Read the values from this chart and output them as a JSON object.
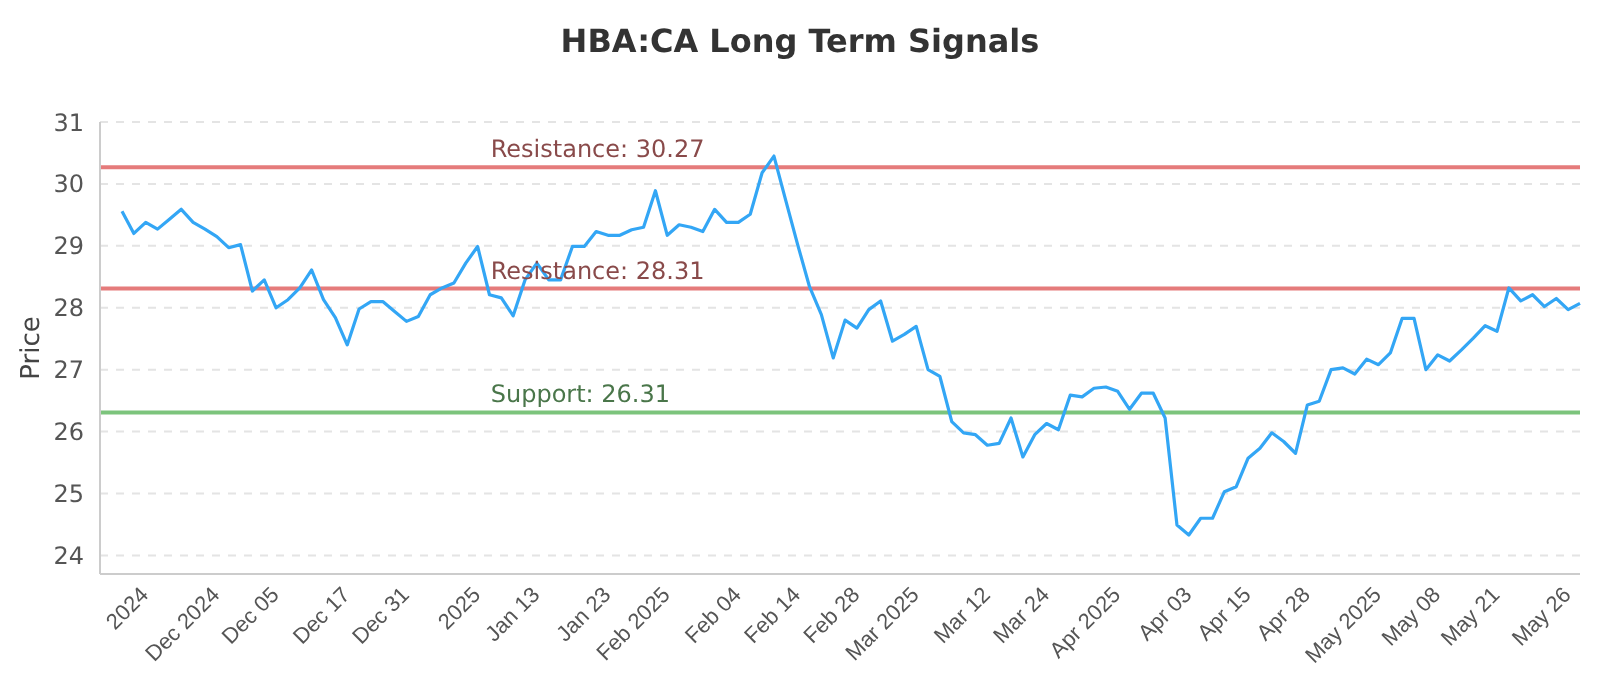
{
  "chart_data": {
    "type": "line",
    "title": "HBA:CA Long Term Signals",
    "ylabel": "Price",
    "categories": [
      null,
      null,
      "2024",
      null,
      null,
      null,
      null,
      null,
      "Dec 2024",
      null,
      null,
      null,
      null,
      "Dec 05",
      null,
      null,
      null,
      null,
      null,
      "Dec 17",
      null,
      null,
      null,
      null,
      "Dec 31",
      null,
      null,
      null,
      null,
      null,
      "2025",
      null,
      null,
      null,
      null,
      "Jan 13",
      null,
      null,
      null,
      null,
      null,
      "Jan 23",
      null,
      null,
      null,
      null,
      "Feb 2025",
      null,
      null,
      null,
      null,
      null,
      "Feb 04",
      null,
      null,
      null,
      null,
      "Feb 14",
      null,
      null,
      null,
      null,
      "Feb 28",
      null,
      null,
      null,
      null,
      "Mar 2025",
      null,
      null,
      null,
      null,
      null,
      "Mar 12",
      null,
      null,
      null,
      null,
      "Mar 24",
      null,
      null,
      null,
      null,
      null,
      "Apr 2025",
      null,
      null,
      null,
      null,
      null,
      "Apr 03",
      null,
      null,
      null,
      null,
      "Apr 15",
      null,
      null,
      null,
      null,
      "Apr 28",
      null,
      null,
      null,
      null,
      null,
      "May 2025",
      null,
      null,
      null,
      null,
      "May 08",
      null,
      null,
      null,
      null,
      "May 21",
      null,
      null,
      null,
      null,
      null,
      "May 26",
      null
    ],
    "series": [
      {
        "color": "#33a6f5",
        "values": [
          29.56,
          29.2,
          29.38,
          29.27,
          29.43,
          29.59,
          29.38,
          29.27,
          29.15,
          28.97,
          29.02,
          28.27,
          28.45,
          28.0,
          28.13,
          28.32,
          28.61,
          28.13,
          27.84,
          27.4,
          27.98,
          28.1,
          28.1,
          27.94,
          27.78,
          27.86,
          28.21,
          28.32,
          28.4,
          28.72,
          28.99,
          28.21,
          28.16,
          27.87,
          28.45,
          28.72,
          28.45,
          28.45,
          28.99,
          28.99,
          29.23,
          29.17,
          29.17,
          29.26,
          29.3,
          29.89,
          29.17,
          29.34,
          29.3,
          29.23,
          29.59,
          29.38,
          29.38,
          29.51,
          30.18,
          30.45,
          29.73,
          29.02,
          28.34,
          27.89,
          27.19,
          27.8,
          27.67,
          27.97,
          28.11,
          27.46,
          27.57,
          27.7,
          27.0,
          26.89,
          26.16,
          25.98,
          25.95,
          25.78,
          25.81,
          26.22,
          25.59,
          25.95,
          26.13,
          26.03,
          26.59,
          26.56,
          26.7,
          26.72,
          26.65,
          26.36,
          26.62,
          26.62,
          26.22,
          24.49,
          24.33,
          24.6,
          24.6,
          25.03,
          25.11,
          25.57,
          25.73,
          25.98,
          25.84,
          25.65,
          26.43,
          26.49,
          27.0,
          27.03,
          26.93,
          27.17,
          27.08,
          27.27,
          27.83,
          27.83,
          27.0,
          27.24,
          27.14,
          27.32,
          27.51,
          27.71,
          27.62,
          28.32,
          28.11,
          28.21,
          28.02,
          28.15,
          27.97,
          28.07
        ]
      }
    ],
    "ylim": [
      23.7,
      31
    ],
    "yticks": [
      24,
      25,
      26,
      27,
      28,
      29,
      30,
      31
    ],
    "grid": "y",
    "marker": "none",
    "line_style": "solid",
    "legend": false,
    "ref_lines": [
      {
        "axis": "y",
        "value": 30.27,
        "label": "Resistance: 30.27",
        "color": "#e57b7b"
      },
      {
        "axis": "y",
        "value": 28.31,
        "label": "Resistance: 28.31",
        "color": "#e57b7b"
      },
      {
        "axis": "y",
        "value": 26.31,
        "label": "Support: 26.31",
        "color": "#7cc47c"
      }
    ]
  }
}
